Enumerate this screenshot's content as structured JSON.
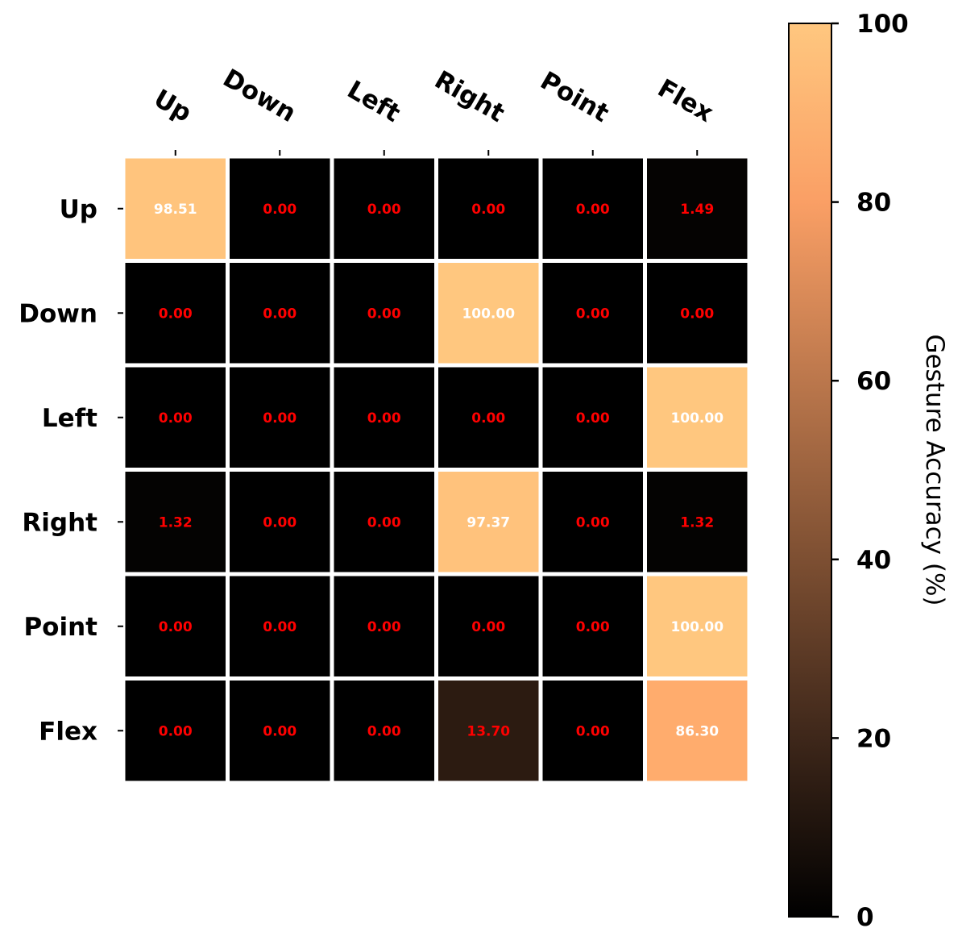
{
  "chart_data": {
    "type": "heatmap",
    "title": "",
    "xlabel": "",
    "ylabel": "",
    "x_categories": [
      "Up",
      "Down",
      "Left",
      "Right",
      "Point",
      "Flex"
    ],
    "y_categories": [
      "Up",
      "Down",
      "Left",
      "Right",
      "Point",
      "Flex"
    ],
    "values": [
      [
        98.51,
        0.0,
        0.0,
        0.0,
        0.0,
        1.49
      ],
      [
        0.0,
        0.0,
        0.0,
        100.0,
        0.0,
        0.0
      ],
      [
        0.0,
        0.0,
        0.0,
        0.0,
        0.0,
        100.0
      ],
      [
        1.32,
        0.0,
        0.0,
        97.37,
        0.0,
        1.32
      ],
      [
        0.0,
        0.0,
        0.0,
        0.0,
        0.0,
        100.0
      ],
      [
        0.0,
        0.0,
        0.0,
        13.7,
        0.0,
        86.3
      ]
    ],
    "value_format_decimals": 2,
    "colorbar": {
      "label": "Gesture Accuracy (%)",
      "range": [
        0,
        100
      ],
      "ticks": [
        "0",
        "20",
        "40",
        "60",
        "80",
        "100"
      ],
      "colormap": "copper",
      "placement": "right"
    },
    "annotation_colors": {
      "high": "#ffffff",
      "low": "#ff0000"
    },
    "x_tick_position": "top",
    "x_tick_rotation_deg": 30,
    "grid": false
  }
}
